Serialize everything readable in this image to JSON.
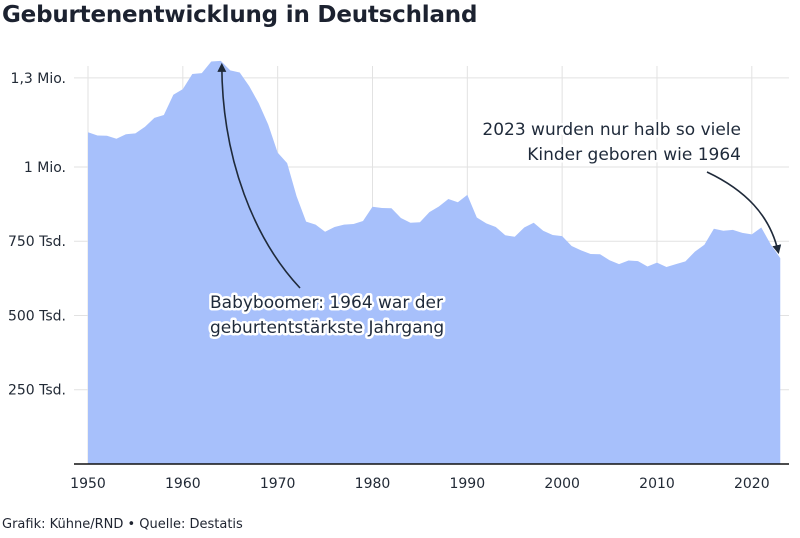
{
  "title": "Geburtenentwicklung in Deutschland",
  "footer": "Grafik: Kühne/RND • Quelle: Destatis",
  "colors": {
    "area": "#a7c0fb",
    "grid": "#e2e2e2",
    "axis": "#111111",
    "text": "#1f2a3a"
  },
  "chart_data": {
    "type": "area",
    "title": "Geburtenentwicklung in Deutschland",
    "xlabel": "",
    "ylabel": "",
    "xlim": [
      1950,
      2023.5
    ],
    "ylim": [
      0,
      1360000
    ],
    "x_ticks": [
      1950,
      1960,
      1970,
      1980,
      1990,
      2000,
      2010,
      2020
    ],
    "x_tick_labels": [
      "1950",
      "1960",
      "1970",
      "1980",
      "1990",
      "2000",
      "2010",
      "2020"
    ],
    "y_ticks": [
      250000,
      500000,
      750000,
      1000000,
      1300000
    ],
    "y_tick_labels": [
      "250 Tsd.",
      "500 Tsd.",
      "750 Tsd.",
      "1 Mio.",
      "1,3 Mio."
    ],
    "grid": true,
    "x": [
      1950,
      1951,
      1952,
      1953,
      1954,
      1955,
      1956,
      1957,
      1958,
      1959,
      1960,
      1961,
      1962,
      1963,
      1964,
      1965,
      1966,
      1967,
      1968,
      1969,
      1970,
      1971,
      1972,
      1973,
      1974,
      1975,
      1976,
      1977,
      1978,
      1979,
      1980,
      1981,
      1982,
      1983,
      1984,
      1985,
      1986,
      1987,
      1988,
      1989,
      1990,
      1991,
      1992,
      1993,
      1994,
      1995,
      1996,
      1997,
      1998,
      1999,
      2000,
      2001,
      2002,
      2003,
      2004,
      2005,
      2006,
      2007,
      2008,
      2009,
      2010,
      2011,
      2012,
      2013,
      2014,
      2015,
      2016,
      2017,
      2018,
      2019,
      2020,
      2021,
      2022,
      2023
    ],
    "values": [
      1117000,
      1106000,
      1105000,
      1095000,
      1110000,
      1113000,
      1135000,
      1165000,
      1175000,
      1243000,
      1262000,
      1313000,
      1316000,
      1355000,
      1357000,
      1325000,
      1318000,
      1272000,
      1215000,
      1143000,
      1048000,
      1013000,
      901000,
      816000,
      806000,
      782000,
      798000,
      806000,
      808000,
      818000,
      866000,
      862000,
      861000,
      828000,
      812000,
      814000,
      848000,
      867000,
      892000,
      881000,
      906000,
      830000,
      810000,
      798000,
      770000,
      765000,
      796000,
      812000,
      785000,
      771000,
      767000,
      734000,
      719000,
      707000,
      706000,
      686000,
      673000,
      685000,
      683000,
      665000,
      678000,
      663000,
      673000,
      682000,
      715000,
      738000,
      792000,
      785000,
      788000,
      778000,
      773000,
      796000,
      739000,
      693000
    ],
    "annotations": [
      {
        "text_lines": [
          "Babyboomer: 1964 war der",
          "geburtentstärkste Jahrgang"
        ],
        "target_x": 1964,
        "target_value": 1357000
      },
      {
        "text_lines": [
          "2023 wurden nur halb so viele",
          "Kinder geboren wie 1964"
        ],
        "target_x": 2023,
        "target_value": 693000
      }
    ]
  }
}
